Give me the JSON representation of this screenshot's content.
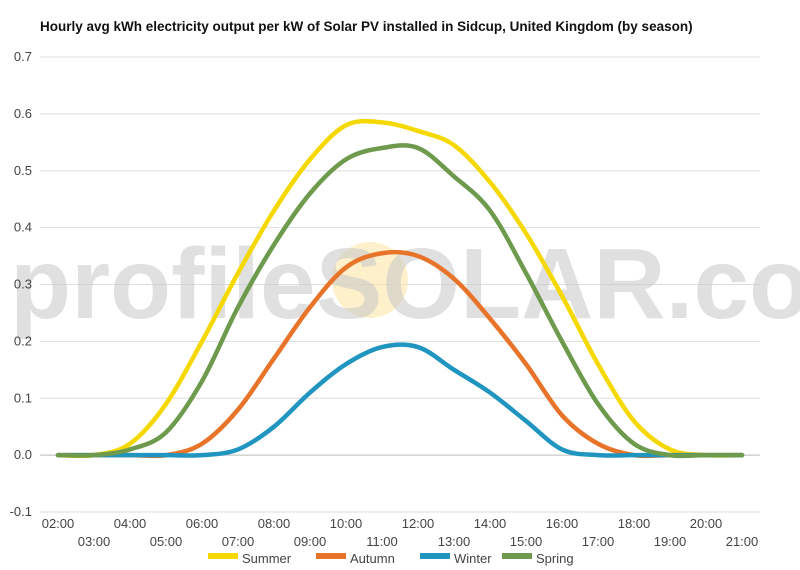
{
  "chart_data": {
    "type": "line",
    "title": "Hourly avg kWh electricity output per kW of Solar PV installed in Sidcup, United Kingdom (by season)",
    "xlabel": "",
    "ylabel": "",
    "ylim": [
      -0.1,
      0.7
    ],
    "yticks": [
      "-0.1",
      "0.0",
      "0.1",
      "0.2",
      "0.3",
      "0.4",
      "0.5",
      "0.6",
      "0.7"
    ],
    "x": [
      "02:00",
      "03:00",
      "04:00",
      "05:00",
      "06:00",
      "07:00",
      "08:00",
      "09:00",
      "10:00",
      "11:00",
      "12:00",
      "13:00",
      "14:00",
      "15:00",
      "16:00",
      "17:00",
      "18:00",
      "19:00",
      "20:00",
      "21:00"
    ],
    "grid": true,
    "legend_position": "bottom",
    "series": [
      {
        "name": "Summer",
        "color": "#f5d800",
        "values": [
          0.0,
          0.0,
          0.02,
          0.09,
          0.2,
          0.32,
          0.43,
          0.52,
          0.58,
          0.585,
          0.57,
          0.545,
          0.48,
          0.39,
          0.28,
          0.16,
          0.06,
          0.01,
          0.0,
          0.0
        ]
      },
      {
        "name": "Autumn",
        "color": "#e8742a",
        "values": [
          0.0,
          0.0,
          0.0,
          0.0,
          0.02,
          0.08,
          0.17,
          0.26,
          0.33,
          0.355,
          0.35,
          0.31,
          0.24,
          0.16,
          0.07,
          0.02,
          0.0,
          0.0,
          0.0,
          0.0
        ]
      },
      {
        "name": "Winter",
        "color": "#1f95c0",
        "values": [
          0.0,
          0.0,
          0.0,
          0.0,
          0.0,
          0.01,
          0.05,
          0.11,
          0.16,
          0.19,
          0.19,
          0.15,
          0.11,
          0.06,
          0.01,
          0.0,
          0.0,
          0.0,
          0.0,
          0.0
        ]
      },
      {
        "name": "Spring",
        "color": "#6e9a4d",
        "values": [
          0.0,
          0.0,
          0.01,
          0.04,
          0.13,
          0.26,
          0.37,
          0.46,
          0.52,
          0.54,
          0.54,
          0.49,
          0.43,
          0.32,
          0.2,
          0.09,
          0.02,
          0.0,
          0.0,
          0.0
        ]
      }
    ]
  },
  "watermark": {
    "text": "profileSOLAR.com"
  }
}
